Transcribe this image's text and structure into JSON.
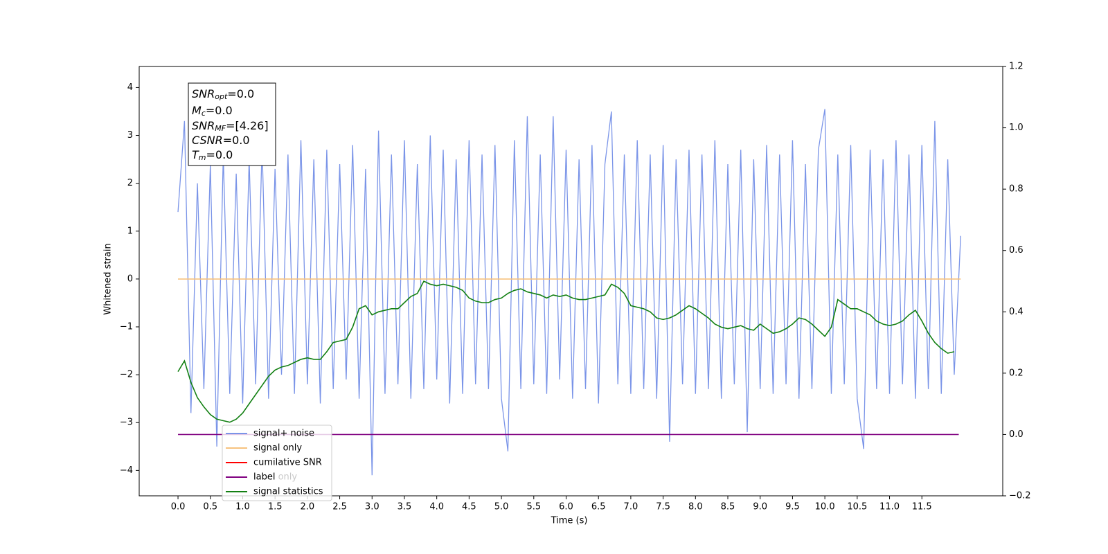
{
  "chart_data": {
    "type": "line",
    "xlabel": "Time (s)",
    "ylabel": "Whitened strain",
    "xlim": [
      -0.6,
      12.75
    ],
    "ylim": [
      -4.53,
      4.44
    ],
    "y2lim": [
      -0.2,
      1.2
    ],
    "xticks": [
      {
        "value": 0,
        "label": "0.0"
      },
      {
        "value": 0.5,
        "label": "0.5"
      },
      {
        "value": 1,
        "label": "1.0"
      },
      {
        "value": 1.5,
        "label": "1.5"
      },
      {
        "value": 2,
        "label": "2.0"
      },
      {
        "value": 2.5,
        "label": "2.5"
      },
      {
        "value": 3,
        "label": "3.0"
      },
      {
        "value": 3.5,
        "label": "3.5"
      },
      {
        "value": 4,
        "label": "4.0"
      },
      {
        "value": 4.5,
        "label": "4.5"
      },
      {
        "value": 5,
        "label": "5.0"
      },
      {
        "value": 5.5,
        "label": "5.5"
      },
      {
        "value": 6,
        "label": "6.0"
      },
      {
        "value": 6.5,
        "label": "6.5"
      },
      {
        "value": 7,
        "label": "7.0"
      },
      {
        "value": 7.5,
        "label": "7.5"
      },
      {
        "value": 8,
        "label": "8.0"
      },
      {
        "value": 8.5,
        "label": "8.5"
      },
      {
        "value": 9,
        "label": "9.0"
      },
      {
        "value": 9.5,
        "label": "9.5"
      },
      {
        "value": 10,
        "label": "10.0"
      },
      {
        "value": 10.5,
        "label": "10.5"
      },
      {
        "value": 11,
        "label": "11.0"
      },
      {
        "value": 11.5,
        "label": "11.5"
      }
    ],
    "yticks": [
      {
        "value": -4,
        "label": "−4"
      },
      {
        "value": -3,
        "label": "−3"
      },
      {
        "value": -2,
        "label": "−2"
      },
      {
        "value": -1,
        "label": "−1"
      },
      0,
      1,
      2,
      3,
      4
    ],
    "y2ticks": [
      {
        "value": -0.2,
        "label": "−0.2"
      },
      {
        "value": 0,
        "label": "0.0"
      },
      {
        "value": 0.2,
        "label": "0.2"
      },
      {
        "value": 0.4,
        "label": "0.4"
      },
      {
        "value": 0.6,
        "label": "0.6"
      },
      {
        "value": 0.8,
        "label": "0.8"
      },
      {
        "value": 1,
        "label": "1.0"
      },
      {
        "value": 1.2,
        "label": "1.2"
      }
    ],
    "legend": "lower left",
    "legend_ghost_text": "label only",
    "annotation": [
      {
        "symbol": "SNR",
        "sub": "opt",
        "value": "=0.0"
      },
      {
        "symbol": "M",
        "sub": "c",
        "value": "=0.0"
      },
      {
        "symbol": "SNR",
        "sub": "MF",
        "value": "=[4.26]"
      },
      {
        "symbol": "CSNR",
        "value": "=0.0"
      },
      {
        "symbol": "T",
        "sub": "m",
        "value": "=0.0"
      }
    ],
    "series": [
      {
        "name": "signal+ noise",
        "color": "#7a94e8",
        "x": [
          0,
          0.1,
          0.2,
          0.3,
          0.4,
          0.5,
          0.6,
          0.7,
          0.8,
          0.9,
          1,
          1.1,
          1.2,
          1.3,
          1.4,
          1.5,
          1.6,
          1.7,
          1.8,
          1.9,
          2,
          2.1,
          2.2,
          2.3,
          2.4,
          2.5,
          2.6,
          2.7,
          2.8,
          2.9,
          3,
          3.1,
          3.2,
          3.3,
          3.4,
          3.5,
          3.6,
          3.7,
          3.8,
          3.9,
          4,
          4.1,
          4.2,
          4.3,
          4.4,
          4.5,
          4.6,
          4.7,
          4.8,
          4.9,
          5,
          5.1,
          5.2,
          5.3,
          5.4,
          5.5,
          5.6,
          5.7,
          5.8,
          5.9,
          6,
          6.1,
          6.2,
          6.3,
          6.4,
          6.5,
          6.6,
          6.7,
          6.8,
          6.9,
          7,
          7.1,
          7.2,
          7.3,
          7.4,
          7.5,
          7.6,
          7.7,
          7.8,
          7.9,
          8,
          8.1,
          8.2,
          8.3,
          8.4,
          8.5,
          8.6,
          8.7,
          8.8,
          8.9,
          9,
          9.1,
          9.2,
          9.3,
          9.4,
          9.5,
          9.6,
          9.7,
          9.8,
          9.9,
          10,
          10.1,
          10.2,
          10.3,
          10.4,
          10.5,
          10.6,
          10.7,
          10.8,
          10.9,
          11,
          11.1,
          11.2,
          11.3,
          11.4,
          11.5,
          11.6,
          11.7,
          11.8,
          11.9,
          12,
          12.1
        ],
        "values": [
          1.4,
          3.3,
          -2.8,
          2.0,
          -2.3,
          2.4,
          -3.5,
          2.6,
          -2.4,
          2.2,
          -2.6,
          2.5,
          -2.2,
          2.8,
          -2.5,
          2.3,
          -2.0,
          2.6,
          -2.4,
          2.9,
          -2.2,
          2.5,
          -2.6,
          2.7,
          -2.3,
          2.4,
          -2.1,
          2.8,
          -2.5,
          2.3,
          -4.1,
          3.1,
          -2.4,
          2.6,
          -2.2,
          2.9,
          -2.5,
          2.4,
          -2.3,
          3.0,
          -2.1,
          2.7,
          -2.6,
          2.5,
          -2.4,
          2.9,
          -2.2,
          2.6,
          -2.3,
          2.8,
          -2.5,
          -3.6,
          2.9,
          -2.3,
          3.4,
          -2.2,
          2.6,
          -2.4,
          3.4,
          -2.1,
          2.7,
          -2.5,
          2.5,
          -2.3,
          2.8,
          -2.6,
          2.4,
          3.5,
          -2.2,
          2.6,
          -2.4,
          2.9,
          -2.3,
          2.6,
          -2.5,
          2.8,
          -3.4,
          2.5,
          -2.2,
          2.7,
          -2.4,
          2.6,
          -2.3,
          2.9,
          -2.5,
          2.4,
          -2.2,
          2.7,
          -3.2,
          2.5,
          -2.3,
          2.8,
          -2.4,
          2.6,
          -2.2,
          2.9,
          -2.5,
          2.4,
          -2.3,
          2.7,
          3.55,
          -2.4,
          2.6,
          -2.2,
          2.8,
          -2.5,
          -3.55,
          2.7,
          -2.3,
          2.5,
          -2.4,
          2.9,
          -2.2,
          2.6,
          -2.5,
          2.8,
          -2.3,
          3.3,
          -2.4,
          2.5,
          -2.0,
          0.9
        ]
      },
      {
        "name": "signal only",
        "color": "#f7c27e",
        "x": [
          0,
          12.1
        ],
        "values": [
          0,
          0
        ]
      },
      {
        "name": "cumilative SNR",
        "color": "#ff0000",
        "x": [],
        "values": []
      },
      {
        "name": "label",
        "color": "#800080",
        "axis": "y2",
        "x": [
          0,
          12.07
        ],
        "values": [
          0,
          0
        ]
      },
      {
        "name": "signal statistics",
        "color": "#138013",
        "axis": "y2",
        "x": [
          0,
          0.1,
          0.2,
          0.3,
          0.4,
          0.5,
          0.6,
          0.7,
          0.8,
          0.9,
          1,
          1.1,
          1.2,
          1.3,
          1.4,
          1.5,
          1.6,
          1.7,
          1.8,
          1.9,
          2,
          2.1,
          2.2,
          2.3,
          2.4,
          2.5,
          2.6,
          2.7,
          2.8,
          2.9,
          3,
          3.1,
          3.2,
          3.3,
          3.4,
          3.5,
          3.6,
          3.7,
          3.8,
          3.9,
          4,
          4.1,
          4.2,
          4.3,
          4.4,
          4.5,
          4.6,
          4.7,
          4.8,
          4.9,
          5,
          5.1,
          5.2,
          5.3,
          5.4,
          5.5,
          5.6,
          5.7,
          5.8,
          5.9,
          6,
          6.1,
          6.2,
          6.3,
          6.4,
          6.5,
          6.6,
          6.7,
          6.8,
          6.9,
          7,
          7.1,
          7.2,
          7.3,
          7.4,
          7.5,
          7.6,
          7.7,
          7.8,
          7.9,
          8,
          8.1,
          8.2,
          8.3,
          8.4,
          8.5,
          8.6,
          8.7,
          8.8,
          8.9,
          9,
          9.1,
          9.2,
          9.3,
          9.4,
          9.5,
          9.6,
          9.7,
          9.8,
          9.9,
          10,
          10.1,
          10.2,
          10.3,
          10.4,
          10.5,
          10.6,
          10.7,
          10.8,
          10.9,
          11,
          11.1,
          11.2,
          11.3,
          11.4,
          11.5,
          11.6,
          11.7,
          11.8,
          11.9,
          12
        ],
        "values": [
          0.205,
          0.24,
          0.17,
          0.12,
          0.09,
          0.065,
          0.05,
          0.045,
          0.04,
          0.05,
          0.07,
          0.1,
          0.13,
          0.16,
          0.19,
          0.21,
          0.22,
          0.225,
          0.235,
          0.245,
          0.25,
          0.245,
          0.245,
          0.27,
          0.3,
          0.305,
          0.31,
          0.35,
          0.41,
          0.42,
          0.39,
          0.4,
          0.405,
          0.41,
          0.41,
          0.43,
          0.45,
          0.46,
          0.5,
          0.49,
          0.485,
          0.49,
          0.485,
          0.48,
          0.47,
          0.445,
          0.435,
          0.43,
          0.43,
          0.44,
          0.445,
          0.46,
          0.47,
          0.475,
          0.465,
          0.46,
          0.455,
          0.445,
          0.455,
          0.45,
          0.455,
          0.445,
          0.44,
          0.44,
          0.445,
          0.45,
          0.455,
          0.49,
          0.48,
          0.46,
          0.42,
          0.415,
          0.41,
          0.4,
          0.38,
          0.375,
          0.38,
          0.39,
          0.405,
          0.42,
          0.41,
          0.395,
          0.38,
          0.36,
          0.35,
          0.345,
          0.35,
          0.355,
          0.345,
          0.34,
          0.36,
          0.345,
          0.33,
          0.335,
          0.345,
          0.36,
          0.38,
          0.375,
          0.36,
          0.34,
          0.32,
          0.35,
          0.44,
          0.425,
          0.41,
          0.41,
          0.4,
          0.39,
          0.37,
          0.36,
          0.355,
          0.36,
          0.37,
          0.39,
          0.405,
          0.37,
          0.33,
          0.3,
          0.28,
          0.265,
          0.27
        ]
      }
    ]
  }
}
